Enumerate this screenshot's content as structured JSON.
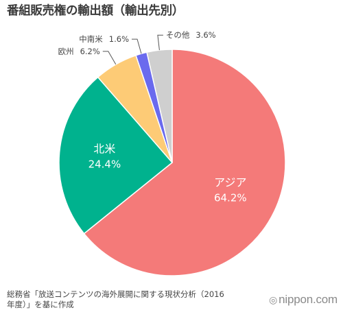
{
  "chart_data": {
    "type": "pie",
    "title": "番組販売権の輸出額（輸出先別）",
    "slices": [
      {
        "label": "アジア",
        "value_label": "64.2%",
        "value": 64.2,
        "color": "#F47A79",
        "label_place": "inside"
      },
      {
        "label": "北米",
        "value_label": "24.4%",
        "value": 24.4,
        "color": "#00B28E",
        "label_place": "inside"
      },
      {
        "label": "欧州",
        "value_label": "6.2%",
        "value": 6.2,
        "color": "#FDCB76",
        "label_place": "outside-left"
      },
      {
        "label": "中南米",
        "value_label": "1.6%",
        "value": 1.6,
        "color": "#6A6AEE",
        "label_place": "outside-left"
      },
      {
        "label": "その他",
        "value_label": "3.6%",
        "value": 3.6,
        "color": "#CFCFCF",
        "label_place": "outside-right"
      }
    ],
    "start": "top",
    "direction": "clockwise"
  },
  "source": {
    "line1": "総務省「放送コンテンツの海外展開に関する現状分析（2016",
    "line2": "年度）」を基に作成"
  },
  "brand": {
    "symbol": "◎",
    "name": "nippon.com"
  }
}
